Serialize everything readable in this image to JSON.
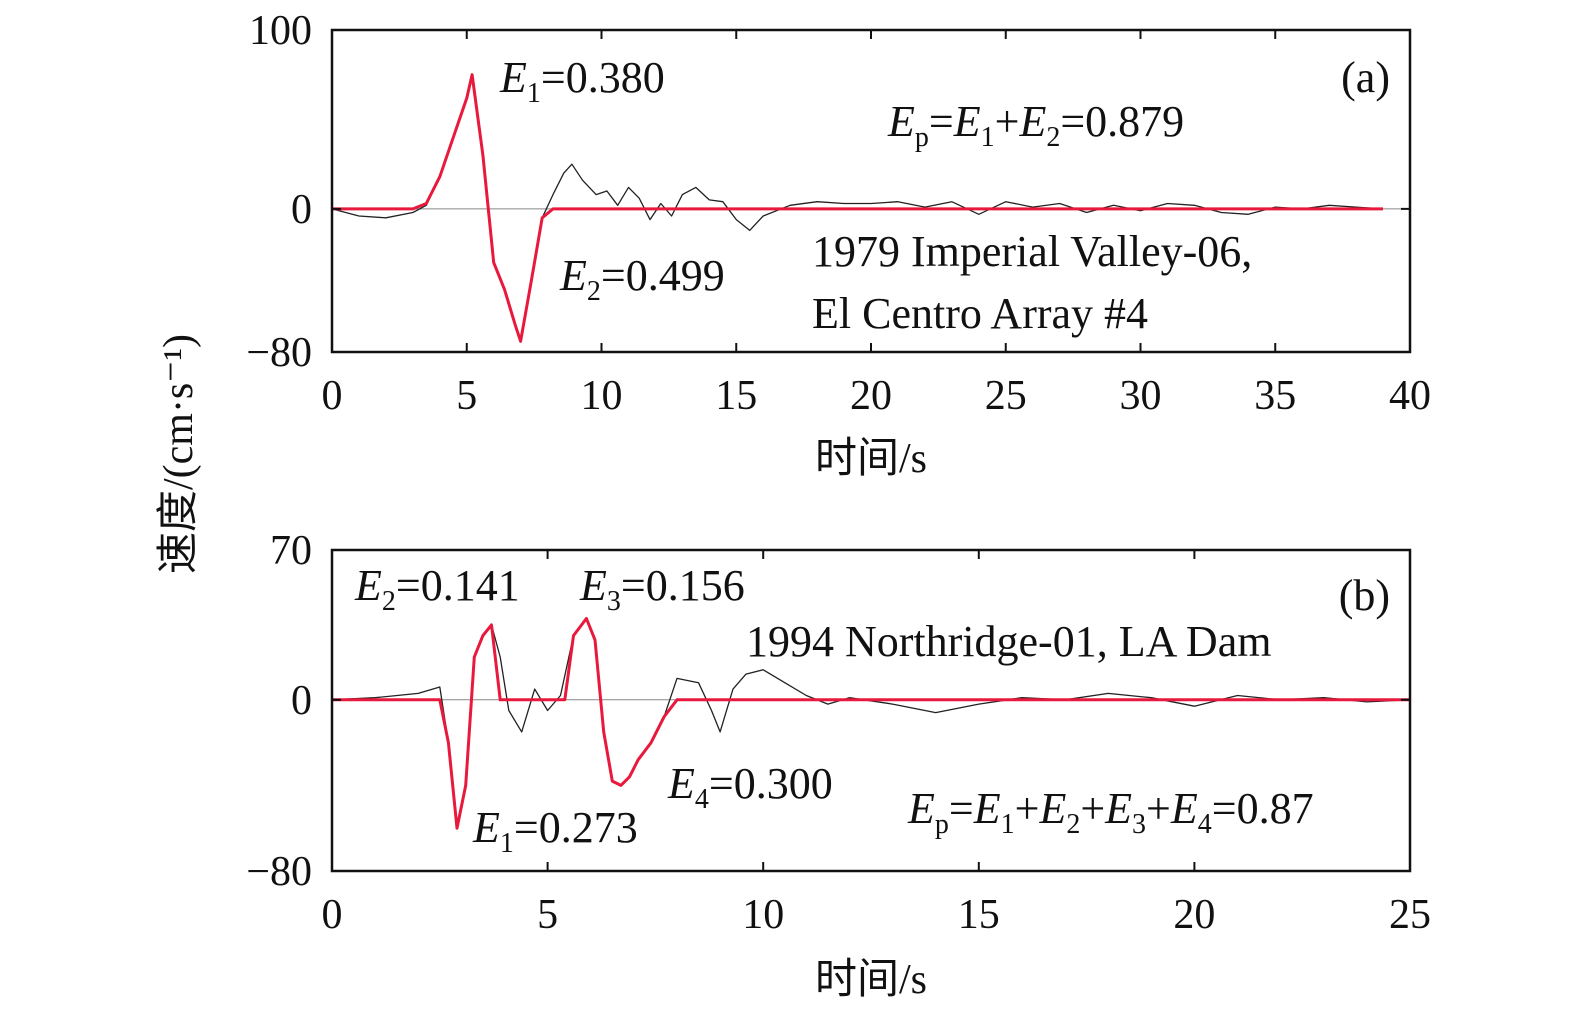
{
  "chart_data": [
    {
      "panel_label": "(a)",
      "type": "line",
      "xlabel": "时间/s",
      "ylabel": "速度/(cm·s⁻¹)",
      "xlim": [
        0,
        40
      ],
      "ylim": [
        -80,
        100
      ],
      "xticks": [
        0,
        5,
        10,
        15,
        20,
        25,
        30,
        35,
        40
      ],
      "yticks": [
        -80,
        0,
        100
      ],
      "record_lines": [
        "1979 Imperial Valley-06,",
        "El Centro Array #4"
      ],
      "annotations": {
        "E1": "0.380",
        "E2": "0.499",
        "Ep_formula": "E_p=E_1+E_2=0.879"
      },
      "series": [
        {
          "role": "ground motion",
          "color": "#222222",
          "x": [
            0,
            1,
            2,
            3,
            3.5,
            4,
            4.5,
            5,
            5.2,
            5.6,
            6,
            6.4,
            6.8,
            7,
            7.4,
            7.8,
            8.2,
            8.6,
            8.9,
            9.3,
            9.8,
            10.2,
            10.6,
            11,
            11.4,
            11.8,
            12.2,
            12.6,
            13,
            13.5,
            14,
            14.5,
            15,
            15.5,
            16,
            17,
            18,
            19,
            20,
            21,
            22,
            23,
            24,
            25,
            26,
            27,
            28,
            29,
            30,
            31,
            32,
            33,
            34,
            35,
            36,
            37,
            38,
            39
          ],
          "y": [
            0,
            -4,
            -5,
            -2,
            2,
            18,
            40,
            62,
            75,
            30,
            -30,
            -45,
            -65,
            -74,
            -40,
            -5,
            8,
            20,
            25,
            16,
            8,
            10,
            2,
            12,
            6,
            -6,
            3,
            -4,
            8,
            12,
            5,
            4,
            -6,
            -12,
            -4,
            2,
            4,
            3,
            3,
            4,
            1,
            4,
            -3,
            4,
            1,
            3,
            -2,
            2,
            -1,
            3,
            2,
            -2,
            -3,
            1,
            0,
            2,
            1,
            0
          ]
        },
        {
          "role": "extracted pulse",
          "color": "#e8193c",
          "x": [
            0,
            2,
            3,
            3.5,
            4,
            4.5,
            5,
            5.2,
            5.6,
            6,
            6.4,
            6.8,
            7,
            7.4,
            7.8,
            8.2,
            9,
            39
          ],
          "y": [
            0,
            0,
            0,
            3,
            18,
            40,
            62,
            75,
            30,
            -30,
            -45,
            -65,
            -74,
            -40,
            -5,
            0,
            0,
            0
          ]
        }
      ]
    },
    {
      "panel_label": "(b)",
      "type": "line",
      "xlabel": "时间/s",
      "ylabel": "速度/(cm·s⁻¹)",
      "xlim": [
        0,
        25
      ],
      "ylim": [
        -80,
        70
      ],
      "xticks": [
        0,
        5,
        10,
        15,
        20,
        25
      ],
      "yticks": [
        -80,
        0,
        70
      ],
      "record_lines": [
        "1994 Northridge-01, LA Dam"
      ],
      "annotations": {
        "E1": "0.273",
        "E2": "0.141",
        "E3": "0.156",
        "E4": "0.300",
        "Ep_formula": "E_p=E_1+E_2+E_3+E_4=0.87"
      },
      "series": [
        {
          "role": "ground motion",
          "color": "#222222",
          "x": [
            0,
            1,
            2,
            2.5,
            2.7,
            2.9,
            3.1,
            3.3,
            3.5,
            3.7,
            3.9,
            4.1,
            4.4,
            4.7,
            5,
            5.3,
            5.6,
            5.9,
            6.1,
            6.3,
            6.5,
            6.7,
            6.9,
            7.1,
            7.4,
            7.7,
            8,
            8.5,
            8.8,
            9,
            9.3,
            9.6,
            10,
            10.5,
            11,
            11.5,
            12,
            13,
            14,
            15,
            16,
            17,
            18,
            19,
            20,
            21,
            22,
            23,
            24,
            25
          ],
          "y": [
            0,
            1,
            3,
            6,
            -20,
            -60,
            -40,
            20,
            30,
            35,
            20,
            -5,
            -15,
            5,
            -5,
            2,
            30,
            38,
            28,
            -15,
            -38,
            -40,
            -36,
            -28,
            -20,
            -8,
            10,
            8,
            -5,
            -15,
            5,
            12,
            14,
            8,
            2,
            -2,
            1,
            -2,
            -6,
            -2,
            1,
            0,
            3,
            1,
            -3,
            2,
            0,
            1,
            -1,
            0
          ]
        },
        {
          "role": "extracted pulse",
          "color": "#e8193c",
          "x": [
            0,
            2,
            2.5,
            2.7,
            2.9,
            3.1,
            3.3,
            3.5,
            3.7,
            3.9,
            4.2,
            5.4,
            5.6,
            5.9,
            6.1,
            6.3,
            6.5,
            6.7,
            6.9,
            7.1,
            7.4,
            7.7,
            8,
            25
          ],
          "y": [
            0,
            0,
            0,
            -20,
            -60,
            -40,
            20,
            30,
            35,
            0,
            0,
            0,
            30,
            38,
            28,
            -15,
            -38,
            -40,
            -36,
            -28,
            -20,
            -8,
            0,
            0
          ]
        }
      ]
    }
  ]
}
